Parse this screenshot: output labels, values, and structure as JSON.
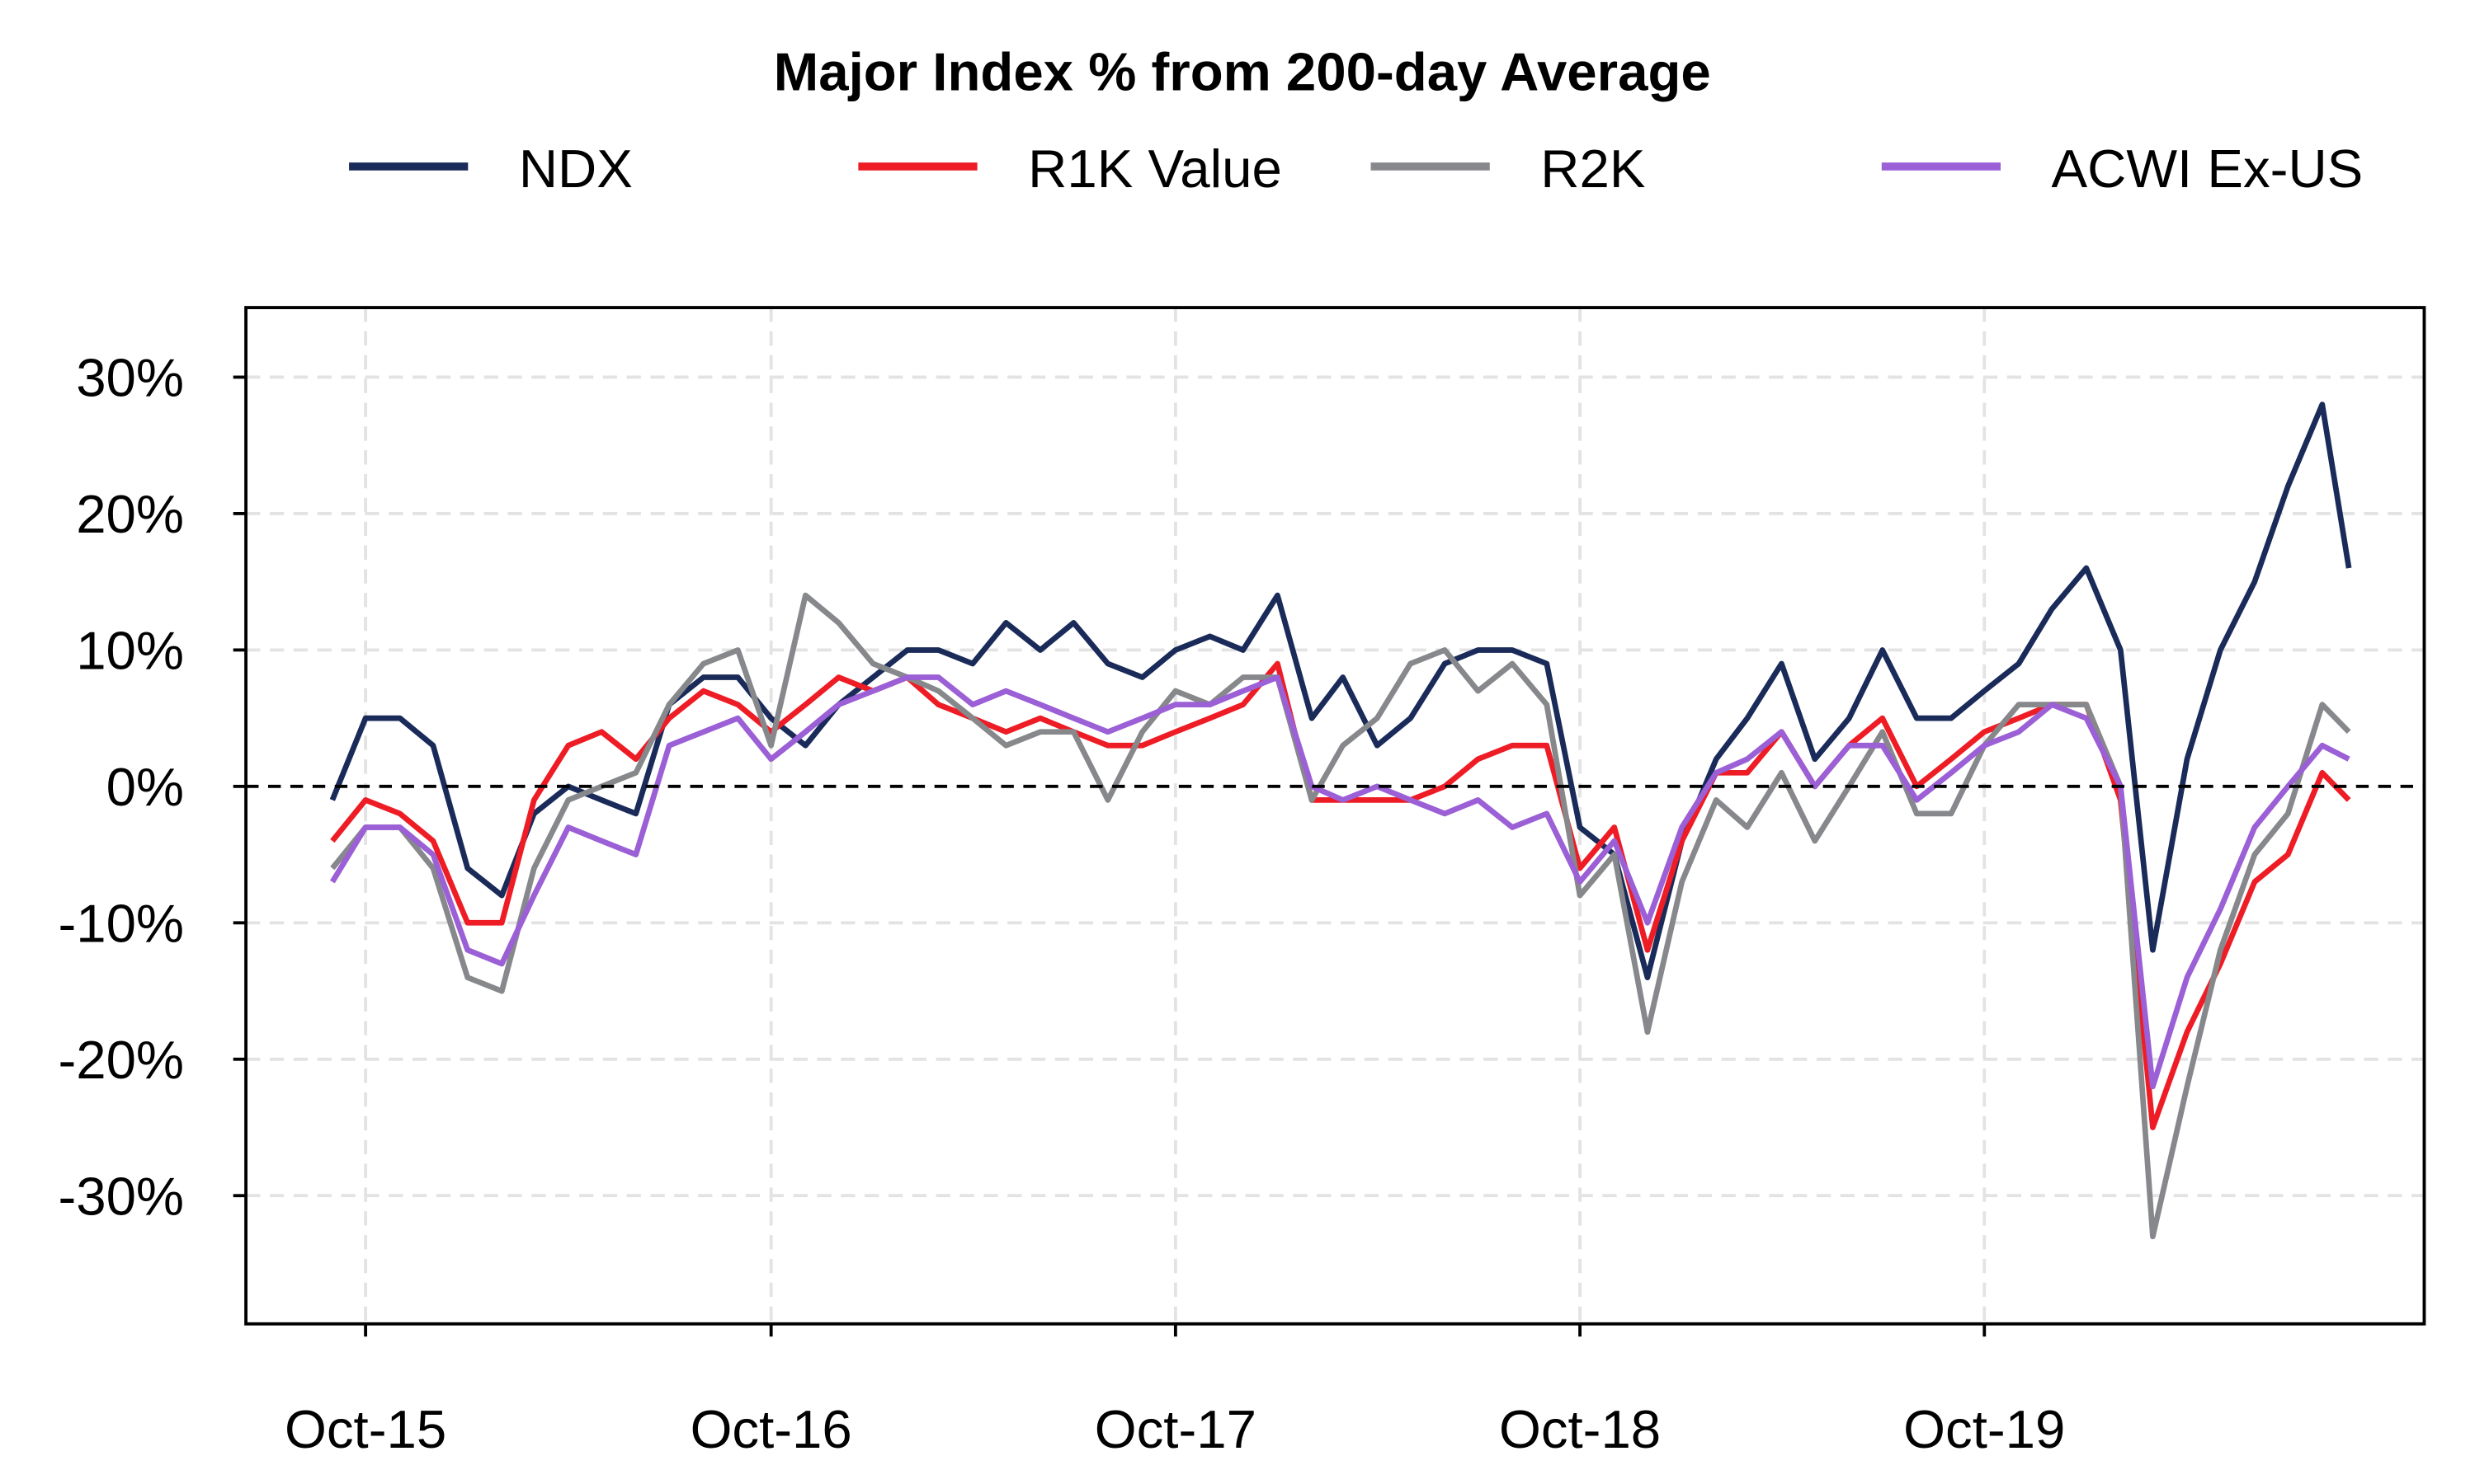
{
  "chart_data": {
    "type": "line",
    "title": "Major Index % from 200-day Average",
    "xlabel": "",
    "ylabel": "",
    "x_ticks": [
      {
        "date": "2015-10-01",
        "label": "Oct-15"
      },
      {
        "date": "2016-10-01",
        "label": "Oct-16"
      },
      {
        "date": "2017-10-01",
        "label": "Oct-17"
      },
      {
        "date": "2018-10-01",
        "label": "Oct-18"
      },
      {
        "date": "2019-10-01",
        "label": "Oct-19"
      }
    ],
    "y_ticks": [
      {
        "value": 30,
        "label": "30%"
      },
      {
        "value": 20,
        "label": "20%"
      },
      {
        "value": 10,
        "label": "10%"
      },
      {
        "value": 0,
        "label": "0%"
      },
      {
        "value": -10,
        "label": "-10%"
      },
      {
        "value": -20,
        "label": "-20%"
      },
      {
        "value": -30,
        "label": "-30%"
      }
    ],
    "xlim": [
      "2015-06-15",
      "2020-11-01"
    ],
    "ylim": [
      -39.4,
      35.1
    ],
    "grid": true,
    "zero_line": true,
    "legend_placement": "top",
    "x": [
      "2015-09-01",
      "2015-10-01",
      "2015-11-01",
      "2015-12-01",
      "2016-01-01",
      "2016-02-01",
      "2016-03-01",
      "2016-04-01",
      "2016-05-01",
      "2016-06-01",
      "2016-07-01",
      "2016-08-01",
      "2016-09-01",
      "2016-10-01",
      "2016-11-01",
      "2016-12-01",
      "2017-01-01",
      "2017-02-01",
      "2017-03-01",
      "2017-04-01",
      "2017-05-01",
      "2017-06-01",
      "2017-07-01",
      "2017-08-01",
      "2017-09-01",
      "2017-10-01",
      "2017-11-01",
      "2017-12-01",
      "2018-01-01",
      "2018-02-01",
      "2018-03-01",
      "2018-04-01",
      "2018-05-01",
      "2018-06-01",
      "2018-07-01",
      "2018-08-01",
      "2018-09-01",
      "2018-10-01",
      "2018-11-01",
      "2018-12-01",
      "2019-01-01",
      "2019-02-01",
      "2019-03-01",
      "2019-04-01",
      "2019-05-01",
      "2019-06-01",
      "2019-07-01",
      "2019-08-01",
      "2019-09-01",
      "2019-10-01",
      "2019-11-01",
      "2019-12-01",
      "2020-01-01",
      "2020-02-01",
      "2020-03-01",
      "2020-04-01",
      "2020-05-01",
      "2020-06-01",
      "2020-07-01",
      "2020-08-01",
      "2020-08-25"
    ],
    "series": [
      {
        "name": "NDX",
        "color": "#1a2b5a",
        "values": [
          -1,
          5,
          5,
          3,
          -6,
          -8,
          -2,
          0,
          -1,
          -2,
          6,
          8,
          8,
          5,
          3,
          6,
          8,
          10,
          10,
          9,
          12,
          10,
          12,
          9,
          8,
          10,
          11,
          10,
          14,
          5,
          8,
          3,
          5,
          9,
          10,
          10,
          9,
          -3,
          -5,
          -14,
          -4,
          2,
          5,
          9,
          2,
          5,
          10,
          5,
          5,
          7,
          9,
          13,
          16,
          10,
          -12,
          2,
          10,
          15,
          22,
          28,
          16
        ]
      },
      {
        "name": "R1K Value",
        "color": "#ee1c25",
        "values": [
          -4,
          -1,
          -2,
          -4,
          -10,
          -10,
          -1,
          3,
          4,
          2,
          5,
          7,
          6,
          4,
          6,
          8,
          7,
          8,
          6,
          5,
          4,
          5,
          4,
          3,
          3,
          4,
          5,
          6,
          9,
          -1,
          -1,
          -1,
          -1,
          0,
          2,
          3,
          3,
          -6,
          -3,
          -12,
          -4,
          1,
          1,
          4,
          0,
          3,
          5,
          0,
          2,
          4,
          5,
          6,
          6,
          -1,
          -25,
          -18,
          -13,
          -7,
          -5,
          1,
          -1
        ]
      },
      {
        "name": "R2K",
        "color": "#86888b",
        "values": [
          -6,
          -3,
          -3,
          -6,
          -14,
          -15,
          -6,
          -1,
          0,
          1,
          6,
          9,
          10,
          3,
          14,
          12,
          9,
          8,
          7,
          5,
          3,
          4,
          4,
          -1,
          4,
          7,
          6,
          8,
          8,
          -1,
          3,
          5,
          9,
          10,
          7,
          9,
          6,
          -8,
          -5,
          -18,
          -7,
          -1,
          -3,
          1,
          -4,
          0,
          4,
          -2,
          -2,
          3,
          6,
          6,
          6,
          0,
          -33,
          -22,
          -12,
          -5,
          -2,
          6,
          4
        ]
      },
      {
        "name": "ACWI Ex-US",
        "color": "#9b5fd6",
        "values": [
          -7,
          -3,
          -3,
          -5,
          -12,
          -13,
          -8,
          -3,
          -4,
          -5,
          3,
          4,
          5,
          2,
          4,
          6,
          7,
          8,
          8,
          6,
          7,
          6,
          5,
          4,
          5,
          6,
          6,
          7,
          8,
          0,
          -1,
          0,
          -1,
          -2,
          -1,
          -3,
          -2,
          -7,
          -4,
          -10,
          -3,
          1,
          2,
          4,
          0,
          3,
          3,
          -1,
          1,
          3,
          4,
          6,
          5,
          0,
          -22,
          -14,
          -9,
          -3,
          0,
          3,
          2
        ]
      }
    ]
  }
}
